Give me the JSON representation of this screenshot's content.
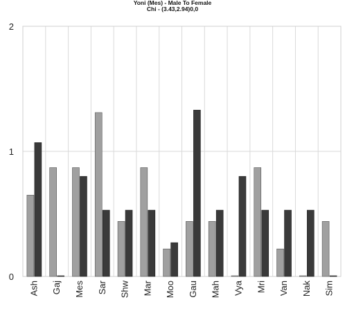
{
  "chart_data": {
    "type": "bar",
    "title": "Yoni (Mes) - Male To Female",
    "subtitle": "Chi - (3.43,2.94)0,0",
    "xlabel": "",
    "ylabel": "",
    "categories": [
      "Ash",
      "Gaj",
      "Mes",
      "Sar",
      "Shw",
      "Mar",
      "Moo",
      "Gau",
      "Mah",
      "Vya",
      "Mri",
      "Van",
      "Nak",
      "Sim"
    ],
    "series": [
      {
        "color": "#a0a0a0",
        "values": [
          0.65,
          0.87,
          0.87,
          1.31,
          0.44,
          0.87,
          0.22,
          0.44,
          0.44,
          0.0,
          0.87,
          0.22,
          0.0,
          0.44
        ]
      },
      {
        "color": "#3a3a3a",
        "values": [
          1.07,
          0.0,
          0.8,
          0.53,
          0.53,
          0.53,
          0.27,
          1.33,
          0.53,
          0.8,
          0.53,
          0.53,
          0.53,
          0.0
        ]
      }
    ],
    "ylim": [
      0,
      2
    ],
    "yticks": [
      "0",
      "1",
      "2"
    ],
    "grid": true,
    "legend": "none"
  }
}
